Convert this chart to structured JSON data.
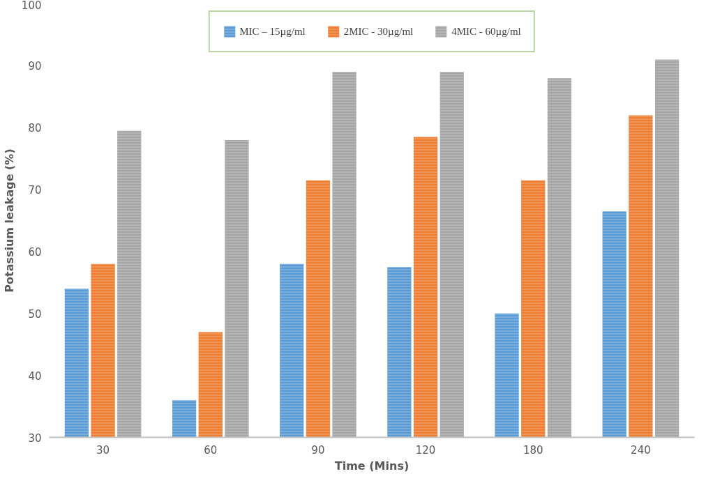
{
  "chart_data": {
    "type": "bar",
    "xlabel": "Time (Mins)",
    "ylabel": "Potassium leakage (%)",
    "categories": [
      "30",
      "60",
      "90",
      "120",
      "180",
      "240"
    ],
    "series": [
      {
        "name": "MIC – 15µg/ml",
        "color": "#5b9bd5",
        "values": [
          54,
          36,
          58,
          57.5,
          50,
          66.5
        ]
      },
      {
        "name": "2MIC - 30µg/ml",
        "color": "#ed7d31",
        "values": [
          58,
          47,
          71.5,
          78.5,
          71.5,
          82
        ]
      },
      {
        "name": "4MIC - 60µg/ml",
        "color": "#a5a5a5",
        "values": [
          79.5,
          78,
          89,
          89,
          88,
          91
        ]
      }
    ],
    "ylim": [
      30,
      100
    ],
    "yticks": [
      30,
      40,
      50,
      60,
      70,
      80,
      90,
      100
    ],
    "grid": false,
    "legend": "top"
  }
}
